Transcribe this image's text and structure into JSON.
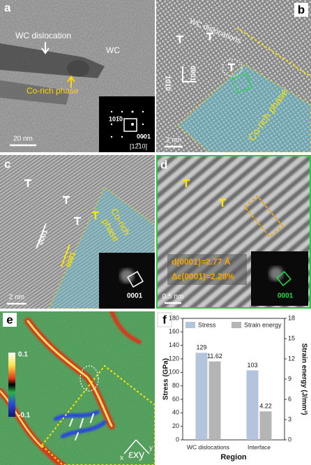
{
  "panels": {
    "a": {
      "label": "a",
      "dislocation": "WC dislocation",
      "matrix": "WC",
      "phase": "Co-rich phase",
      "scale": "20 nm",
      "plane": "101̅0",
      "direction": "0001",
      "zone_axis": "[12̅10]"
    },
    "b": {
      "label": "b",
      "dislocations": "WC dislocations",
      "plane": "101̅0",
      "direction": "0001",
      "phase": "Co-rich phase",
      "scale": "2 nm"
    },
    "c": {
      "label": "c",
      "direction": "0001",
      "phase_line1": "Co-rich",
      "phase_line2": "phase",
      "phase_direction": "0001",
      "scale": "2 nm",
      "inset": "0001"
    },
    "d": {
      "label": "d",
      "spacing": "d(0001)=2.77 Å",
      "strain": "Δε(0001)=2.28%",
      "scale": "0.5 nm",
      "inset": "0001"
    },
    "e": {
      "label": "e",
      "cbar_max": "0.1",
      "cbar_min": "-0.1",
      "axis_x": "x",
      "axis_y": "y",
      "component": "εxy"
    },
    "f": {
      "label": "f"
    }
  },
  "chart_data": {
    "type": "bar",
    "xlabel": "Region",
    "ylabel": "Stress (GPa)",
    "y2label": "Strain energy (J/mm³)",
    "categories": [
      "WC dislocations",
      "Interface"
    ],
    "series": [
      {
        "name": "Stress",
        "color": "#b3c4dc",
        "values": [
          129,
          103
        ]
      },
      {
        "name": "Strain energy",
        "color": "#b5b5b5",
        "values": [
          11.62,
          4.22
        ],
        "axis": "y2"
      }
    ],
    "ylim": [
      0,
      180
    ],
    "yticks": [
      0,
      20,
      40,
      60,
      80,
      100,
      120,
      140,
      160,
      180
    ],
    "y2lim": [
      0,
      18
    ],
    "y2ticks": [
      0,
      3,
      6,
      9,
      12,
      15,
      18
    ],
    "legend": "top"
  }
}
